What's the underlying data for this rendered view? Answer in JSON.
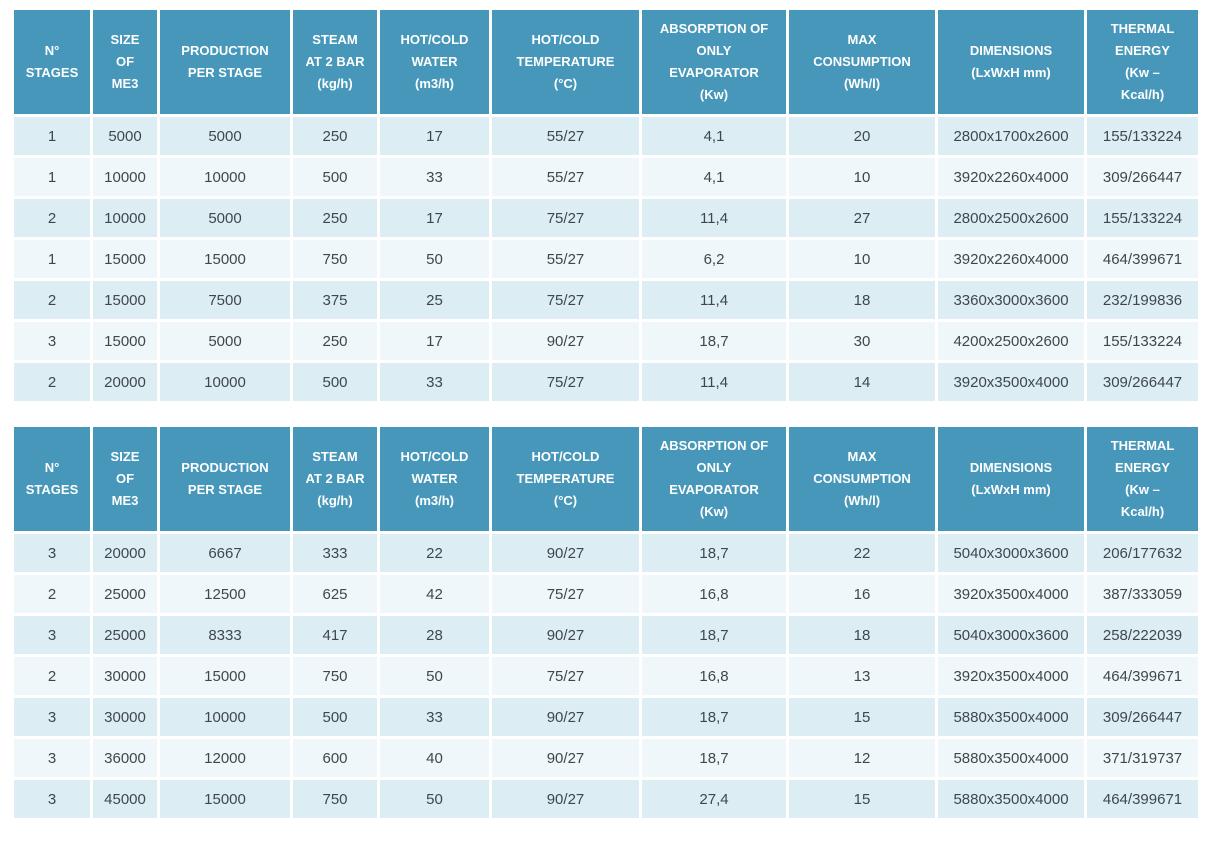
{
  "colors": {
    "header_bg": "#4697b9",
    "header_text": "#ffffff",
    "row_odd_bg": "#dcedf4",
    "row_even_bg": "#eff7fa",
    "cell_text": "#3f474e",
    "page_bg": "#ffffff"
  },
  "chart_data": [
    {
      "type": "table",
      "columns": [
        {
          "key": "n-stages",
          "label": "N°\nSTAGES"
        },
        {
          "key": "size-of-me3",
          "label": "SIZE\nOF\nME3"
        },
        {
          "key": "production-per-stage",
          "label": "PRODUCTION\nPER STAGE"
        },
        {
          "key": "steam-at-2-bar",
          "label": "STEAM\nAT 2 BAR\n(kg/h)"
        },
        {
          "key": "hot-cold-water",
          "label": "HOT/COLD\nWATER\n(m3/h)"
        },
        {
          "key": "hot-cold-temperature",
          "label": "HOT/COLD\nTEMPERATURE\n(°C)"
        },
        {
          "key": "absorption-of-only-evaporator",
          "label": "ABSORPTION OF\nONLY\nEVAPORATOR\n(Kw)"
        },
        {
          "key": "max-consumption",
          "label": "MAX\nCONSUMPTION\n(Wh/l)"
        },
        {
          "key": "dimensions",
          "label": "DIMENSIONS\n(LxWxH mm)"
        },
        {
          "key": "thermal-energy",
          "label": "THERMAL\nENERGY\n(Kw –\nKcal/h)"
        }
      ],
      "rows": [
        [
          "1",
          "5000",
          "5000",
          "250",
          "17",
          "55/27",
          "4,1",
          "20",
          "2800x1700x2600",
          "155/133224"
        ],
        [
          "1",
          "10000",
          "10000",
          "500",
          "33",
          "55/27",
          "4,1",
          "10",
          "3920x2260x4000",
          "309/266447"
        ],
        [
          "2",
          "10000",
          "5000",
          "250",
          "17",
          "75/27",
          "11,4",
          "27",
          "2800x2500x2600",
          "155/133224"
        ],
        [
          "1",
          "15000",
          "15000",
          "750",
          "50",
          "55/27",
          "6,2",
          "10",
          "3920x2260x4000",
          "464/399671"
        ],
        [
          "2",
          "15000",
          "7500",
          "375",
          "25",
          "75/27",
          "11,4",
          "18",
          "3360x3000x3600",
          "232/199836"
        ],
        [
          "3",
          "15000",
          "5000",
          "250",
          "17",
          "90/27",
          "18,7",
          "30",
          "4200x2500x2600",
          "155/133224"
        ],
        [
          "2",
          "20000",
          "10000",
          "500",
          "33",
          "75/27",
          "11,4",
          "14",
          "3920x3500x4000",
          "309/266447"
        ]
      ]
    },
    {
      "type": "table",
      "columns": [
        {
          "key": "n-stages",
          "label": "N°\nSTAGES"
        },
        {
          "key": "size-of-me3",
          "label": "SIZE\nOF\nME3"
        },
        {
          "key": "production-per-stage",
          "label": "PRODUCTION\nPER STAGE"
        },
        {
          "key": "steam-at-2-bar",
          "label": "STEAM\nAT 2 BAR\n(kg/h)"
        },
        {
          "key": "hot-cold-water",
          "label": "HOT/COLD\nWATER\n(m3/h)"
        },
        {
          "key": "hot-cold-temperature",
          "label": "HOT/COLD\nTEMPERATURE\n(°C)"
        },
        {
          "key": "absorption-of-only-evaporator",
          "label": "ABSORPTION OF\nONLY\nEVAPORATOR\n(Kw)"
        },
        {
          "key": "max-consumption",
          "label": "MAX\nCONSUMPTION\n(Wh/l)"
        },
        {
          "key": "dimensions",
          "label": "DIMENSIONS\n(LxWxH mm)"
        },
        {
          "key": "thermal-energy",
          "label": "THERMAL\nENERGY\n(Kw –\nKcal/h)"
        }
      ],
      "rows": [
        [
          "3",
          "20000",
          "6667",
          "333",
          "22",
          "90/27",
          "18,7",
          "22",
          "5040x3000x3600",
          "206/177632"
        ],
        [
          "2",
          "25000",
          "12500",
          "625",
          "42",
          "75/27",
          "16,8",
          "16",
          "3920x3500x4000",
          "387/333059"
        ],
        [
          "3",
          "25000",
          "8333",
          "417",
          "28",
          "90/27",
          "18,7",
          "18",
          "5040x3000x3600",
          "258/222039"
        ],
        [
          "2",
          "30000",
          "15000",
          "750",
          "50",
          "75/27",
          "16,8",
          "13",
          "3920x3500x4000",
          "464/399671"
        ],
        [
          "3",
          "30000",
          "10000",
          "500",
          "33",
          "90/27",
          "18,7",
          "15",
          "5880x3500x4000",
          "309/266447"
        ],
        [
          "3",
          "36000",
          "12000",
          "600",
          "40",
          "90/27",
          "18,7",
          "12",
          "5880x3500x4000",
          "371/319737"
        ],
        [
          "3",
          "45000",
          "15000",
          "750",
          "50",
          "90/27",
          "27,4",
          "15",
          "5880x3500x4000",
          "464/399671"
        ]
      ]
    }
  ]
}
